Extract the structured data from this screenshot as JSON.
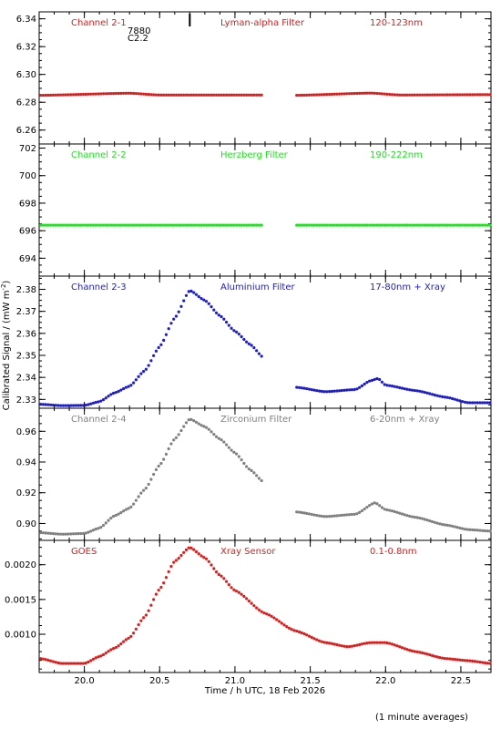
{
  "chart_data": [
    {
      "type": "scatter",
      "labels": {
        "channel": "Channel 2-1",
        "filter": "Lyman-alpha Filter",
        "band": "120-123nm"
      },
      "color": "#dd1c1c",
      "ylim": [
        6.25,
        6.345
      ],
      "yticks": [
        6.26,
        6.28,
        6.3,
        6.32,
        6.34
      ],
      "ytick_labels": [
        "6.26",
        "6.28",
        "6.30",
        "6.32",
        "6.34"
      ],
      "annotation": {
        "lines": [
          "7880",
          "C2.2"
        ],
        "x": 20.7
      },
      "segments": [
        {
          "x": [
            19.71,
            21.19
          ],
          "knots": [
            [
              19.71,
              6.285
            ],
            [
              20.3,
              6.2865
            ],
            [
              20.5,
              6.2852
            ],
            [
              21.19,
              6.2852
            ]
          ]
        },
        {
          "x": [
            21.41,
            22.7
          ],
          "knots": [
            [
              21.41,
              6.285
            ],
            [
              21.9,
              6.2866
            ],
            [
              22.1,
              6.2852
            ],
            [
              22.7,
              6.2855
            ]
          ]
        }
      ]
    },
    {
      "type": "scatter",
      "labels": {
        "channel": "Channel 2-2",
        "filter": "Herzberg Filter",
        "band": "190-222nm"
      },
      "color": "#22e022",
      "ylim": [
        692.7,
        702.3
      ],
      "yticks": [
        694,
        696,
        698,
        700,
        702
      ],
      "ytick_labels": [
        "694",
        "696",
        "698",
        "700",
        "702"
      ],
      "segments": [
        {
          "x": [
            19.71,
            21.19
          ],
          "knots": [
            [
              19.71,
              696.4
            ],
            [
              21.19,
              696.4
            ]
          ]
        },
        {
          "x": [
            21.41,
            22.7
          ],
          "knots": [
            [
              21.41,
              696.4
            ],
            [
              22.7,
              696.4
            ]
          ]
        }
      ]
    },
    {
      "type": "scatter",
      "labels": {
        "channel": "Channel 2-3",
        "filter": "Aluminium Filter",
        "band": "17-80nm + Xray"
      },
      "color": "#1c1ccc",
      "ylim": [
        2.326,
        2.386
      ],
      "yticks": [
        2.33,
        2.34,
        2.35,
        2.36,
        2.37,
        2.38
      ],
      "ytick_labels": [
        "2.33",
        "2.34",
        "2.35",
        "2.36",
        "2.37",
        "2.38"
      ],
      "segments": [
        {
          "x": [
            19.71,
            21.19
          ],
          "knots": [
            [
              19.71,
              2.3278
            ],
            [
              19.85,
              2.3272
            ],
            [
              20.0,
              2.3273
            ],
            [
              20.1,
              2.329
            ],
            [
              20.2,
              2.333
            ],
            [
              20.3,
              2.336
            ],
            [
              20.4,
              2.343
            ],
            [
              20.5,
              2.354
            ],
            [
              20.6,
              2.367
            ],
            [
              20.7,
              2.3795
            ],
            [
              20.8,
              2.375
            ],
            [
              20.9,
              2.368
            ],
            [
              21.0,
              2.361
            ],
            [
              21.1,
              2.355
            ],
            [
              21.19,
              2.349
            ]
          ]
        },
        {
          "x": [
            21.41,
            22.7
          ],
          "knots": [
            [
              21.41,
              2.3355
            ],
            [
              21.6,
              2.3335
            ],
            [
              21.8,
              2.3345
            ],
            [
              21.9,
              2.3385
            ],
            [
              21.95,
              2.3395
            ],
            [
              22.0,
              2.3365
            ],
            [
              22.2,
              2.334
            ],
            [
              22.4,
              2.331
            ],
            [
              22.55,
              2.3285
            ],
            [
              22.7,
              2.3285
            ]
          ]
        }
      ]
    },
    {
      "type": "scatter",
      "labels": {
        "channel": "Channel 2-4",
        "filter": "Zirconium Filter",
        "band": "6-20nm + Xray"
      },
      "color": "#808080",
      "ylim": [
        0.889,
        0.975
      ],
      "yticks": [
        0.9,
        0.92,
        0.94,
        0.96
      ],
      "ytick_labels": [
        "0.90",
        "0.92",
        "0.94",
        "0.96"
      ],
      "segments": [
        {
          "x": [
            19.71,
            21.19
          ],
          "knots": [
            [
              19.71,
              0.894
            ],
            [
              19.85,
              0.893
            ],
            [
              20.0,
              0.8935
            ],
            [
              20.1,
              0.897
            ],
            [
              20.2,
              0.905
            ],
            [
              20.3,
              0.91
            ],
            [
              20.4,
              0.922
            ],
            [
              20.5,
              0.938
            ],
            [
              20.6,
              0.955
            ],
            [
              20.7,
              0.968
            ],
            [
              20.8,
              0.963
            ],
            [
              20.9,
              0.955
            ],
            [
              21.0,
              0.946
            ],
            [
              21.1,
              0.935
            ],
            [
              21.19,
              0.927
            ]
          ]
        },
        {
          "x": [
            21.41,
            22.7
          ],
          "knots": [
            [
              21.41,
              0.9075
            ],
            [
              21.6,
              0.9045
            ],
            [
              21.8,
              0.906
            ],
            [
              21.93,
              0.9135
            ],
            [
              22.0,
              0.909
            ],
            [
              22.2,
              0.904
            ],
            [
              22.4,
              0.899
            ],
            [
              22.55,
              0.896
            ],
            [
              22.7,
              0.895
            ]
          ]
        }
      ]
    },
    {
      "type": "scatter",
      "labels": {
        "channel": "GOES",
        "filter": "Xray Sensor",
        "band": "0.1-0.8nm"
      },
      "color": "#dd1c1c",
      "ylim": [
        0.00045,
        0.00235
      ],
      "yticks": [
        0.001,
        0.0015,
        0.002
      ],
      "ytick_labels": [
        "0.0010",
        "0.0015",
        "0.0020"
      ],
      "segments": [
        {
          "x": [
            19.71,
            22.7
          ],
          "knots": [
            [
              19.71,
              0.00065
            ],
            [
              19.85,
              0.00058
            ],
            [
              20.0,
              0.00058
            ],
            [
              20.1,
              0.00068
            ],
            [
              20.2,
              0.0008
            ],
            [
              20.3,
              0.00095
            ],
            [
              20.4,
              0.00125
            ],
            [
              20.5,
              0.00165
            ],
            [
              20.6,
              0.00205
            ],
            [
              20.7,
              0.00225
            ],
            [
              20.8,
              0.0021
            ],
            [
              20.9,
              0.00185
            ],
            [
              21.0,
              0.00163
            ],
            [
              21.2,
              0.0013
            ],
            [
              21.4,
              0.00105
            ],
            [
              21.6,
              0.00088
            ],
            [
              21.75,
              0.00082
            ],
            [
              21.9,
              0.00088
            ],
            [
              22.0,
              0.00088
            ],
            [
              22.2,
              0.00075
            ],
            [
              22.4,
              0.00065
            ],
            [
              22.55,
              0.00062
            ],
            [
              22.7,
              0.00058
            ]
          ]
        }
      ]
    }
  ],
  "xaxis": {
    "xlim": [
      19.7,
      22.7
    ],
    "ticks": [
      20.0,
      20.5,
      21.0,
      21.5,
      22.0,
      22.5
    ],
    "tick_labels": [
      "20.0",
      "20.5",
      "21.0",
      "21.5",
      "22.0",
      "22.5"
    ],
    "xlabel": "Time / h UTC, 18 Feb 2026"
  },
  "ylabel": {
    "main": "Calibrated Signal / (mW m",
    "exponent": "-2",
    "close": ")"
  },
  "footnote": "(1 minute averages)",
  "colors": {
    "axis": "#000000",
    "background": "#ffffff"
  }
}
